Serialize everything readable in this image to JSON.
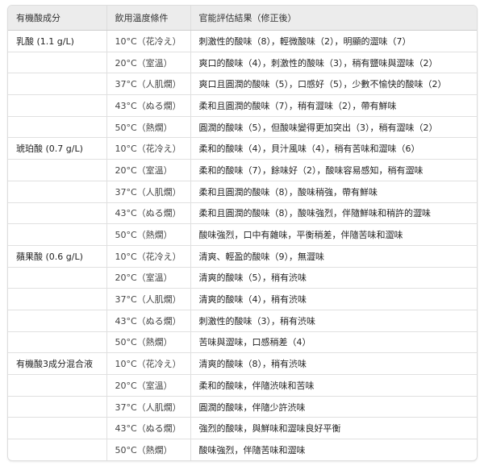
{
  "headers": [
    "有機酸成分",
    "飲用溫度條件",
    "官能評估結果（修正後）"
  ],
  "rows": [
    {
      "acid": "乳酸 (1.1 g/L)",
      "temp": "10°C（花冷え）",
      "result": "刺激性的酸味（8），輕微酸味（2），明顯的澀味（7）"
    },
    {
      "acid": "",
      "temp": "20°C（室溫）",
      "result": "爽口的酸味（4），刺激性的酸味（3），稍有鹽味與澀味（2）"
    },
    {
      "acid": "",
      "temp": "37°C（人肌燗）",
      "result": "爽口且圓潤的酸味（5），口感好（5），少數不愉快的酸味（2）"
    },
    {
      "acid": "",
      "temp": "43°C（ぬる燗）",
      "result": "柔和且圓潤的酸味（7），稍有澀味（2），帶有鮮味"
    },
    {
      "acid": "",
      "temp": "50°C（熱燗）",
      "result": "圓潤的酸味（5），但酸味變得更加突出（3），稍有澀味（2）"
    },
    {
      "acid": "琥珀酸 (0.7 g/L)",
      "temp": "10°C（花冷え）",
      "result": "柔和的酸味（4），貝汁風味（4），稍有苦味和澀味（6）"
    },
    {
      "acid": "",
      "temp": "20°C（室溫）",
      "result": "柔和的酸味（7），餘味好（2），酸味容易感知，稍有澀味"
    },
    {
      "acid": "",
      "temp": "37°C（人肌燗）",
      "result": "柔和且圓潤的酸味（8），酸味稍強，帶有鮮味"
    },
    {
      "acid": "",
      "temp": "43°C（ぬる燗）",
      "result": "柔和且圓潤的酸味（8），酸味強烈，伴隨鮮味和稍許的澀味"
    },
    {
      "acid": "",
      "temp": "50°C（熱燗）",
      "result": "酸味強烈，口中有雜味，平衡稍差，伴隨苦味和澀味"
    },
    {
      "acid": "蘋果酸 (0.6 g/L)",
      "temp": "10°C（花冷え）",
      "result": "清爽、輕盈的酸味（9），無澀味"
    },
    {
      "acid": "",
      "temp": "20°C（室溫）",
      "result": "清爽的酸味（5），稍有渋味"
    },
    {
      "acid": "",
      "temp": "37°C（人肌燗）",
      "result": "清爽的酸味（4），稍有渋味"
    },
    {
      "acid": "",
      "temp": "43°C（ぬる燗）",
      "result": "刺激性的酸味（3），稍有渋味"
    },
    {
      "acid": "",
      "temp": "50°C（熱燗）",
      "result": "苦味與澀味，口感稍差（4）"
    },
    {
      "acid": "有機酸3成分混合液",
      "temp": "10°C（花冷え）",
      "result": "清爽的酸味（8），稍有渋味"
    },
    {
      "acid": "",
      "temp": "20°C（室溫）",
      "result": "柔和的酸味，伴隨渋味和苦味"
    },
    {
      "acid": "",
      "temp": "37°C（人肌燗）",
      "result": "圓潤的酸味，伴隨少許渋味"
    },
    {
      "acid": "",
      "temp": "43°C（ぬる燗）",
      "result": "強烈的酸味，與鮮味和澀味良好平衡"
    },
    {
      "acid": "",
      "temp": "50°C（熱燗）",
      "result": "酸味強烈，伴隨苦味和澀味"
    }
  ]
}
